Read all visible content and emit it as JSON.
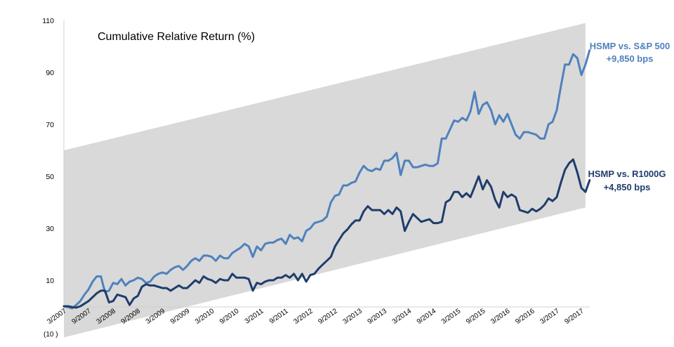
{
  "chart_data": {
    "type": "line",
    "title": "Cumulative Relative Return (%)",
    "ylim": [
      -10,
      110
    ],
    "y_ticks": [
      "110",
      "90",
      "70",
      "50",
      "30",
      "10"
    ],
    "y_bottom_label": "(10 )",
    "x_tick_labels": [
      "3/2007",
      "9/2007",
      "3/2008",
      "9/2008",
      "3/2009",
      "9/2009",
      "3/2010",
      "9/2010",
      "3/2011",
      "9/2011",
      "3/2012",
      "9/2012",
      "3/2013",
      "9/2013",
      "3/2014",
      "9/2014",
      "3/2015",
      "9/2015",
      "3/2016",
      "9/2016",
      "3/2017",
      "9/2017"
    ],
    "band": {
      "description": "shaded range",
      "upper": [
        [
          0,
          60
        ],
        [
          127,
          109
        ]
      ],
      "lower": [
        [
          0,
          -12
        ],
        [
          127,
          38
        ]
      ],
      "color": "#d9d9d9"
    },
    "series": [
      {
        "name": "HSMP vs. S&P 500",
        "label_line1": "HSMP vs. S&P 500",
        "label_line2": "+9,850 bps",
        "color": "#4f81bd",
        "label_color": "#4f81bd",
        "values": [
          0,
          -0.3,
          -0.8,
          0.5,
          2,
          4.5,
          6.5,
          9.5,
          11.5,
          11.5,
          5.5,
          6,
          9,
          8.5,
          10.5,
          8,
          9.5,
          10,
          11,
          10.5,
          9,
          9.5,
          11.5,
          12.5,
          13,
          12.5,
          14,
          15,
          15.5,
          14,
          15.5,
          17.5,
          18.5,
          17.5,
          19.5,
          19.5,
          19,
          17.5,
          19.5,
          18.5,
          18.5,
          20.5,
          21.5,
          22.5,
          24,
          23,
          19,
          23,
          21.5,
          24,
          24.5,
          24.5,
          25.5,
          26,
          24,
          27.5,
          26,
          26.5,
          25,
          29,
          30,
          32,
          32.5,
          33,
          34.5,
          40,
          42.5,
          43,
          46.5,
          46.5,
          47.5,
          48,
          51.5,
          54,
          52.5,
          52,
          53,
          52.5,
          56,
          56,
          57,
          59,
          50.5,
          56,
          56,
          53.5,
          53.5,
          54,
          54.5,
          54,
          54,
          55,
          64.5,
          64.5,
          68,
          71.5,
          71,
          72.5,
          71.5,
          75,
          82.5,
          74,
          77.5,
          78.5,
          75.5,
          70,
          73.5,
          71,
          74,
          70,
          66,
          64.5,
          67,
          67,
          66.5,
          66,
          64.5,
          64.5,
          70,
          71,
          75.5,
          84.5,
          93,
          93,
          97,
          95.5,
          89,
          93,
          98.5
        ]
      },
      {
        "name": "HSMP vs. R1000G",
        "label_line1": "HSMP vs. R1000G",
        "label_line2": "+4,850 bps",
        "color": "#1f3d6b",
        "label_color": "#1f3d6b",
        "values": [
          0,
          0,
          -0.3,
          -0.5,
          0,
          1,
          2,
          3.5,
          5,
          6,
          6,
          1.5,
          2,
          4.5,
          4,
          3.5,
          0.5,
          3,
          4,
          7.5,
          8.5,
          8,
          8,
          7.5,
          7,
          7,
          6,
          7,
          8,
          7,
          7,
          8.5,
          10,
          9,
          11.5,
          10.5,
          10,
          9,
          10.5,
          10,
          10,
          12.5,
          11,
          11,
          11,
          10.5,
          6,
          9,
          8.5,
          9.5,
          10,
          10,
          11,
          11,
          12,
          11,
          12.5,
          10,
          12.5,
          9.5,
          12,
          12.5,
          14.5,
          16,
          17.5,
          19,
          23,
          25.5,
          28,
          29.5,
          31.5,
          33,
          33,
          36.5,
          38.5,
          37,
          37,
          37,
          35.5,
          37,
          35.5,
          38,
          36.5,
          29,
          32.5,
          35.5,
          34,
          32.5,
          33,
          33.5,
          32,
          32,
          32.5,
          40,
          41,
          44,
          44,
          42,
          43.5,
          42,
          46,
          50,
          45,
          48.5,
          46,
          41,
          38,
          44,
          42,
          43,
          42,
          37,
          36.5,
          36,
          37.5,
          36.5,
          37.5,
          39,
          41.5,
          40.5,
          42,
          47.5,
          52.5,
          55,
          56.5,
          51.5,
          45.5,
          44,
          48.5
        ]
      }
    ]
  }
}
